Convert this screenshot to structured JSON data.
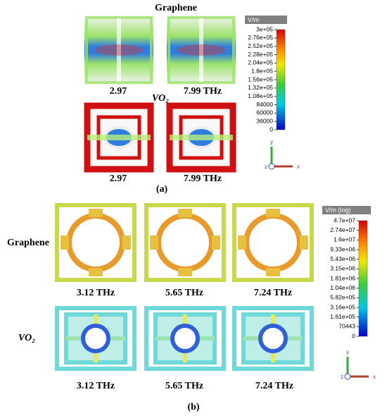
{
  "panel_a": {
    "title": "Graphene",
    "material2": "VO₂",
    "labels": [
      "2.97",
      "7.99 THz",
      "2.97",
      "7.99 THz"
    ],
    "colorbar_unit": "V/m",
    "colorbar_ticks": [
      "3e+05",
      "2.76e+05",
      "2.52e+05",
      "2.28e+05",
      "2.04e+05",
      "1.8e+05",
      "1.56e+05",
      "1.32e+05",
      "1.08e+05",
      "84000",
      "60000",
      "36000",
      "0"
    ],
    "axes": [
      "y",
      "z",
      "x"
    ],
    "caption": "(a)"
  },
  "panel_b": {
    "material1": "Graphene",
    "material2": "VO₂",
    "labels": [
      "3.12 THz",
      "5.65 THz",
      "7.24 THz",
      "3.12 THz",
      "5.65 THz",
      "7.24 THz"
    ],
    "colorbar_unit": "V/m (log)",
    "colorbar_ticks": [
      "4.7e+07",
      "2.74e+07",
      "1.6e+07",
      "9.33e+06",
      "5.43e+06",
      "3.15e+06",
      "1.81e+06",
      "1.04e+06",
      "5.82e+05",
      "3.16e+05",
      "1.61e+05",
      "70443",
      "0"
    ],
    "axes": [
      "y",
      "z",
      "x"
    ],
    "caption": "(b)"
  }
}
